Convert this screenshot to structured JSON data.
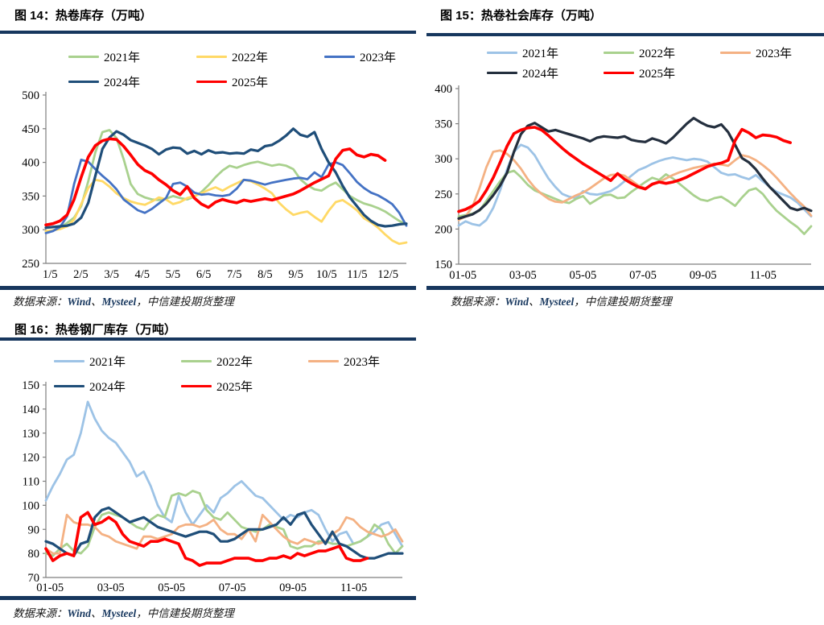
{
  "source_note": {
    "prefix": "数据来源：",
    "vendor1": "Wind",
    "sep1": "、",
    "vendor2": "Mysteel",
    "sep2": "，",
    "suffix": "中信建投期货整理"
  },
  "colors": {
    "accent_bar": "#17375E",
    "red": "#FF0000"
  },
  "chart_data": [
    {
      "id": "chart14",
      "type": "line",
      "title": "图 14：热卷库存（万吨）",
      "ylim": [
        250,
        500
      ],
      "yticks": [
        250,
        300,
        350,
        400,
        450,
        500
      ],
      "weeks_total": 52,
      "grid": false,
      "legend_position": "top",
      "x_ticks": [
        {
          "label": "1/5",
          "m": 0
        },
        {
          "label": "2/5",
          "m": 1
        },
        {
          "label": "3/5",
          "m": 2
        },
        {
          "label": "4/5",
          "m": 3
        },
        {
          "label": "5/5",
          "m": 4
        },
        {
          "label": "6/5",
          "m": 5
        },
        {
          "label": "7/5",
          "m": 6
        },
        {
          "label": "8/5",
          "m": 7
        },
        {
          "label": "9/5",
          "m": 8
        },
        {
          "label": "10/5",
          "m": 9
        },
        {
          "label": "11/5",
          "m": 10
        },
        {
          "label": "12/5",
          "m": 11
        }
      ],
      "legend_rows": [
        [
          0,
          1,
          2
        ],
        [
          3,
          4
        ]
      ],
      "series": [
        {
          "name": "2021年",
          "color": "#A9D18E",
          "width": 2.8,
          "values": [
            297,
            299,
            303,
            310,
            318,
            335,
            372,
            415,
            445,
            448,
            436,
            405,
            368,
            353,
            348,
            345,
            344,
            346,
            350,
            347,
            345,
            349,
            356,
            366,
            378,
            388,
            395,
            392,
            396,
            399,
            401,
            398,
            395,
            397,
            395,
            390,
            375,
            366,
            360,
            358,
            365,
            370,
            360,
            350,
            344,
            339,
            336,
            332,
            327,
            320,
            313,
            308
          ]
        },
        {
          "name": "2022年",
          "color": "#FFD966",
          "width": 2.8,
          "values": [
            298,
            299,
            301,
            305,
            315,
            338,
            362,
            374,
            372,
            364,
            354,
            347,
            342,
            339,
            337,
            342,
            348,
            345,
            338,
            341,
            347,
            350,
            354,
            359,
            363,
            358,
            364,
            369,
            374,
            372,
            367,
            361,
            354,
            340,
            330,
            322,
            325,
            327,
            319,
            312,
            328,
            341,
            344,
            337,
            329,
            317,
            311,
            303,
            293,
            284,
            279,
            281
          ]
        },
        {
          "name": "2023年",
          "color": "#4472C4",
          "width": 2.8,
          "values": [
            295,
            298,
            304,
            320,
            368,
            404,
            401,
            390,
            380,
            371,
            360,
            345,
            337,
            329,
            325,
            331,
            339,
            347,
            368,
            370,
            364,
            355,
            352,
            353,
            351,
            350,
            352,
            361,
            374,
            373,
            370,
            367,
            370,
            372,
            374,
            376,
            377,
            375,
            385,
            378,
            397,
            400,
            396,
            384,
            371,
            362,
            355,
            351,
            345,
            338,
            325,
            306
          ]
        },
        {
          "name": "2024年",
          "color": "#1F4E79",
          "width": 3.2,
          "values": [
            303,
            304,
            305,
            306,
            309,
            318,
            340,
            380,
            420,
            437,
            446,
            441,
            433,
            429,
            425,
            420,
            412,
            419,
            422,
            421,
            413,
            417,
            412,
            418,
            414,
            415,
            413,
            414,
            413,
            419,
            417,
            424,
            426,
            432,
            440,
            450,
            441,
            438,
            445,
            420,
            400,
            385,
            365,
            348,
            335,
            322,
            313,
            307,
            305,
            306,
            308,
            309
          ]
        },
        {
          "name": "2025年",
          "color": "#FF0000",
          "width": 3.6,
          "values": [
            307,
            309,
            313,
            322,
            345,
            378,
            408,
            425,
            432,
            435,
            434,
            424,
            411,
            397,
            388,
            383,
            374,
            367,
            358,
            352,
            364,
            347,
            338,
            333,
            341,
            345,
            342,
            340,
            344,
            342,
            344,
            346,
            344,
            347,
            350,
            353,
            358,
            364,
            370,
            375,
            380,
            405,
            418,
            420,
            411,
            408,
            412,
            410,
            403
          ]
        }
      ]
    },
    {
      "id": "chart15",
      "type": "line",
      "title": "图 15：热卷社会库存（万吨）",
      "ylim": [
        150,
        400
      ],
      "yticks": [
        150,
        200,
        250,
        300,
        350,
        400
      ],
      "weeks_total": 52,
      "grid": false,
      "legend_position": "top",
      "x_ticks": [
        {
          "label": "01-05",
          "m": 0
        },
        {
          "label": "03-05",
          "m": 2
        },
        {
          "label": "05-05",
          "m": 4
        },
        {
          "label": "07-05",
          "m": 6
        },
        {
          "label": "09-05",
          "m": 8
        },
        {
          "label": "11-05",
          "m": 10
        }
      ],
      "legend_rows": [
        [
          0,
          1,
          2
        ],
        [
          3,
          4
        ]
      ],
      "series": [
        {
          "name": "2021年",
          "color": "#9DC3E6",
          "width": 2.8,
          "values": [
            205,
            211,
            207,
            205,
            213,
            230,
            255,
            285,
            310,
            320,
            316,
            305,
            288,
            272,
            260,
            250,
            246,
            244,
            254,
            250,
            249,
            251,
            254,
            260,
            268,
            276,
            284,
            288,
            293,
            297,
            300,
            302,
            300,
            298,
            300,
            299,
            296,
            288,
            280,
            277,
            278,
            274,
            271,
            277,
            268,
            260,
            253,
            249,
            245,
            238,
            228,
            218
          ]
        },
        {
          "name": "2022年",
          "color": "#A9D18E",
          "width": 2.8,
          "values": [
            218,
            220,
            222,
            226,
            240,
            254,
            268,
            280,
            283,
            274,
            263,
            255,
            251,
            247,
            243,
            239,
            237,
            243,
            247,
            236,
            242,
            248,
            249,
            244,
            245,
            253,
            260,
            267,
            273,
            270,
            278,
            272,
            264,
            256,
            248,
            242,
            240,
            244,
            246,
            240,
            233,
            245,
            255,
            258,
            250,
            237,
            226,
            218,
            210,
            203,
            193,
            204
          ]
        },
        {
          "name": "2023年",
          "color": "#F4B183",
          "width": 2.8,
          "values": [
            213,
            218,
            232,
            258,
            288,
            310,
            312,
            307,
            298,
            286,
            271,
            259,
            250,
            243,
            239,
            238,
            243,
            248,
            252,
            258,
            265,
            272,
            277,
            278,
            276,
            269,
            262,
            258,
            263,
            267,
            272,
            277,
            281,
            284,
            287,
            289,
            291,
            293,
            292,
            290,
            298,
            305,
            303,
            298,
            291,
            283,
            273,
            262,
            251,
            241,
            232,
            219
          ]
        },
        {
          "name": "2024年",
          "color": "#242F3E",
          "width": 3.2,
          "values": [
            215,
            218,
            221,
            227,
            236,
            248,
            262,
            280,
            310,
            335,
            347,
            351,
            345,
            339,
            341,
            338,
            335,
            332,
            329,
            325,
            330,
            332,
            331,
            330,
            332,
            327,
            325,
            324,
            329,
            326,
            322,
            330,
            340,
            350,
            358,
            352,
            347,
            345,
            349,
            338,
            320,
            301,
            295,
            285,
            272,
            260,
            250,
            240,
            230,
            227,
            230,
            226
          ]
        },
        {
          "name": "2025年",
          "color": "#FF0000",
          "width": 3.6,
          "values": [
            225,
            228,
            233,
            240,
            255,
            273,
            295,
            318,
            336,
            341,
            344,
            345,
            341,
            333,
            324,
            315,
            307,
            300,
            293,
            287,
            281,
            275,
            269,
            279,
            271,
            265,
            260,
            257,
            264,
            267,
            265,
            267,
            270,
            274,
            279,
            284,
            289,
            292,
            294,
            298,
            326,
            342,
            337,
            330,
            334,
            333,
            331,
            326,
            323
          ]
        }
      ]
    },
    {
      "id": "chart16",
      "type": "line",
      "title": "图 16：热卷钢厂库存（万吨）",
      "ylim": [
        70,
        150
      ],
      "yticks": [
        70,
        80,
        90,
        100,
        110,
        120,
        130,
        140,
        150
      ],
      "weeks_total": 52,
      "grid": false,
      "legend_position": "top",
      "x_ticks": [
        {
          "label": "01-05",
          "m": 0
        },
        {
          "label": "03-05",
          "m": 2
        },
        {
          "label": "05-05",
          "m": 4
        },
        {
          "label": "07-05",
          "m": 6
        },
        {
          "label": "09-05",
          "m": 8
        },
        {
          "label": "11-05",
          "m": 10
        }
      ],
      "legend_rows": [
        [
          0,
          1,
          2
        ],
        [
          3,
          4
        ]
      ],
      "series": [
        {
          "name": "2021年",
          "color": "#9DC3E6",
          "width": 2.8,
          "values": [
            102,
            108,
            113,
            119,
            121,
            130,
            143,
            136,
            131,
            128,
            126,
            122,
            118,
            112,
            114,
            108,
            100,
            95,
            93,
            104,
            97,
            92,
            96,
            100,
            97,
            103,
            105,
            108,
            110,
            107,
            104,
            103,
            100,
            97,
            94,
            96,
            95,
            97,
            98,
            96,
            90,
            85,
            88,
            89,
            84,
            85,
            87,
            89,
            92,
            93,
            88,
            83
          ]
        },
        {
          "name": "2022年",
          "color": "#A9D18E",
          "width": 2.8,
          "values": [
            80,
            79,
            82,
            84,
            81,
            80,
            83,
            91,
            96,
            97,
            96,
            95,
            93,
            91,
            90,
            94,
            96,
            95,
            104,
            105,
            104,
            106,
            105,
            98,
            95,
            94,
            97,
            94,
            91,
            90,
            89,
            90,
            92,
            91,
            90,
            83,
            82,
            83,
            83,
            85,
            85,
            84,
            84,
            83,
            84,
            85,
            87,
            92,
            90,
            84,
            80,
            83
          ]
        },
        {
          "name": "2023年",
          "color": "#F4B183",
          "width": 2.8,
          "values": [
            82,
            80,
            80,
            96,
            93,
            92,
            92,
            91,
            88,
            87,
            85,
            84,
            83,
            82,
            87,
            87,
            86,
            87,
            88,
            91,
            92,
            92,
            91,
            92,
            94,
            90,
            88,
            88,
            86,
            90,
            85,
            96,
            93,
            90,
            87,
            85,
            84,
            86,
            85,
            84,
            85,
            88,
            90,
            95,
            94,
            91,
            89,
            88,
            87,
            88,
            90,
            85
          ]
        },
        {
          "name": "2024年",
          "color": "#1F4E79",
          "width": 3.2,
          "values": [
            85,
            84,
            82,
            80,
            79,
            84,
            85,
            95,
            98,
            99,
            97,
            95,
            93,
            94,
            95,
            93,
            91,
            90,
            89,
            88,
            87,
            88,
            89,
            89,
            88,
            85,
            85,
            86,
            88,
            90,
            90,
            90,
            91,
            92,
            95,
            92,
            96,
            97,
            92,
            88,
            84,
            89,
            84,
            83,
            81,
            79,
            78,
            78,
            79,
            80,
            80,
            80
          ]
        },
        {
          "name": "2025年",
          "color": "#FF0000",
          "width": 3.6,
          "values": [
            82,
            77,
            79,
            80,
            79,
            95,
            97,
            92,
            93,
            95,
            93,
            88,
            85,
            84,
            83,
            85,
            85,
            86,
            85,
            84,
            78,
            77,
            75,
            76,
            76,
            76,
            77,
            78,
            78,
            78,
            77,
            77,
            78,
            78,
            79,
            78,
            80,
            79,
            80,
            81,
            81,
            82,
            83,
            78,
            77,
            77,
            78
          ]
        }
      ]
    }
  ]
}
